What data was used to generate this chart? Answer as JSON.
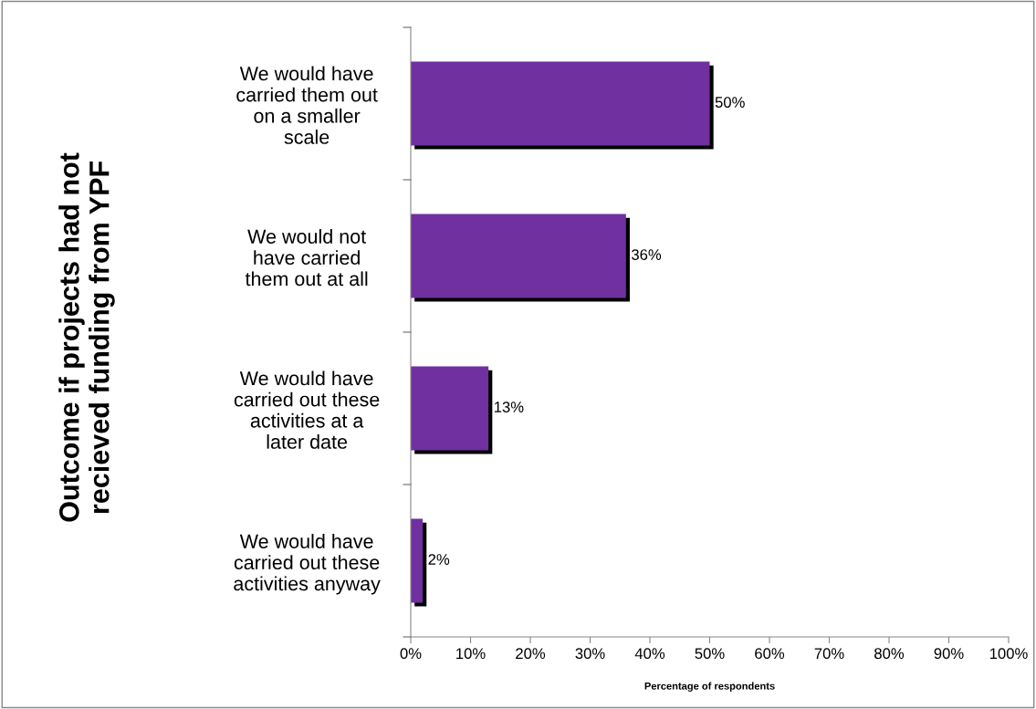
{
  "chart_data": {
    "type": "bar",
    "orientation": "horizontal",
    "ylabel": "Outcome if projects had not\nrecieved funding from YPF",
    "xlabel": "Percentage of respondents",
    "categories": [
      "We would have\ncarried them out\non a smaller\nscale",
      "We would not\nhave carried\nthem out at all",
      "We would have\ncarried out these\nactivities at a\nlater date",
      "We would have\ncarried out these\nactivities anyway"
    ],
    "values": [
      50,
      36,
      13,
      2
    ],
    "color": "#7030a0",
    "value_labels": [
      "50%",
      "36%",
      "13%",
      "2%"
    ],
    "xlim": [
      0,
      100
    ],
    "xticks": [
      {
        "value": 0,
        "label": "0%"
      },
      {
        "value": 10,
        "label": "10%"
      },
      {
        "value": 20,
        "label": "20%"
      },
      {
        "value": 30,
        "label": "30%"
      },
      {
        "value": 40,
        "label": "40%"
      },
      {
        "value": 50,
        "label": "50%"
      },
      {
        "value": 60,
        "label": "60%"
      },
      {
        "value": 70,
        "label": "70%"
      },
      {
        "value": 80,
        "label": "80%"
      },
      {
        "value": 90,
        "label": "90%"
      },
      {
        "value": 100,
        "label": "100%"
      }
    ],
    "grid": false,
    "legend": false
  }
}
